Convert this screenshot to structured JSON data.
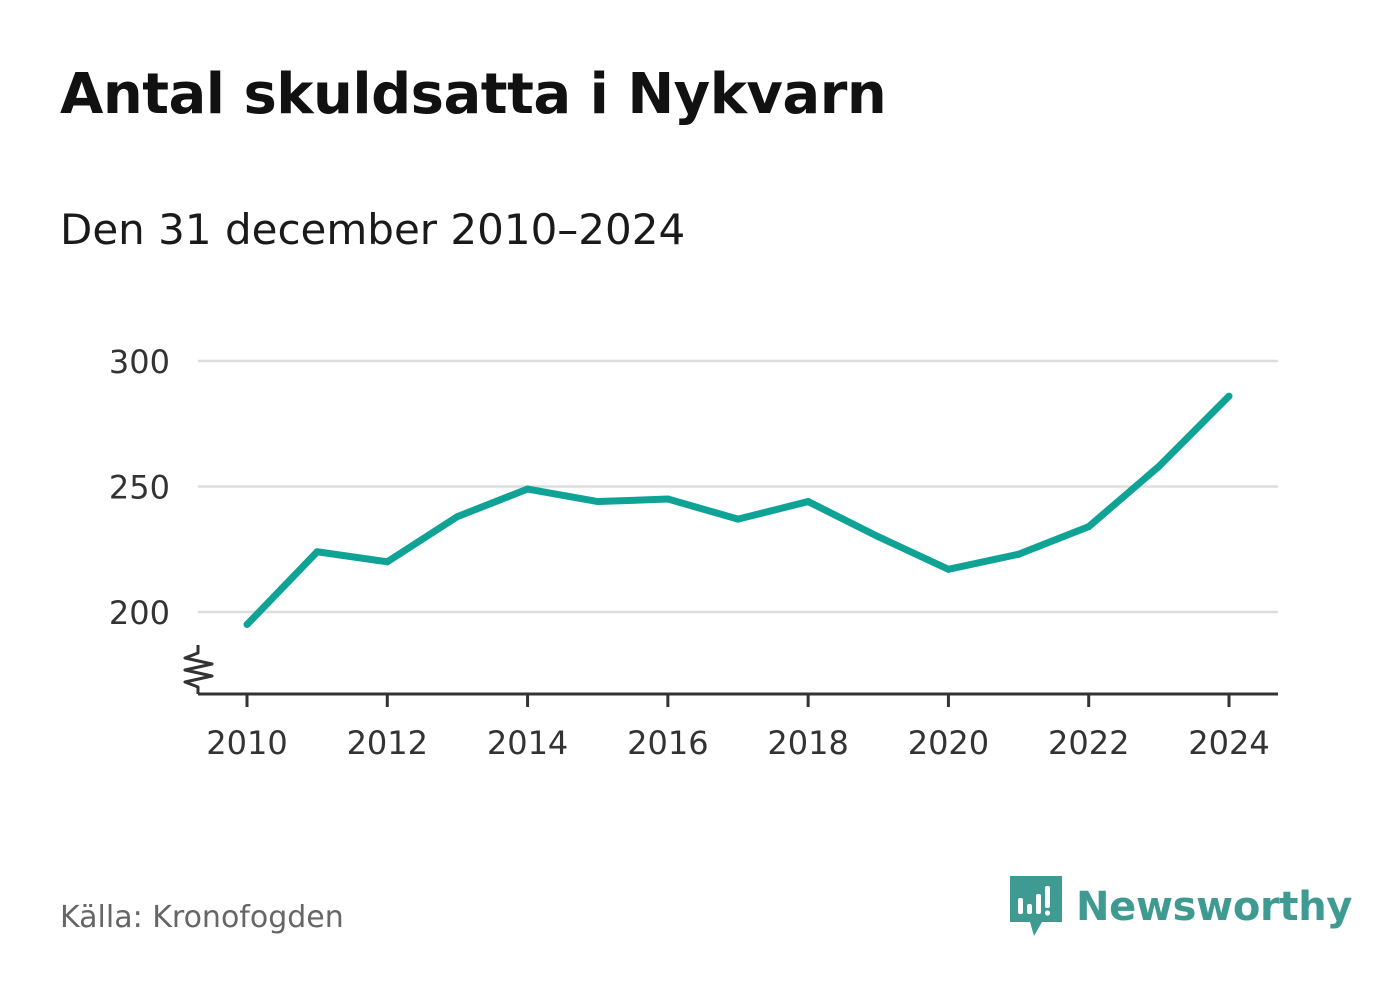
{
  "title": "Antal skuldsatta i Nykvarn",
  "subtitle": "Den 31 december 2010–2024",
  "source": "Källa: Kronofogden",
  "brand": {
    "name": "Newsworthy",
    "color": "#3f9b92",
    "icon": "newsworthy-logo-icon"
  },
  "colors": {
    "line": "#0fa396",
    "grid": "#dddddd",
    "axis": "#333333",
    "text": "#333333"
  },
  "chart_data": {
    "type": "line",
    "title": "Antal skuldsatta i Nykvarn",
    "subtitle": "Den 31 december 2010–2024",
    "x": [
      2010,
      2011,
      2012,
      2013,
      2014,
      2015,
      2016,
      2017,
      2018,
      2019,
      2020,
      2021,
      2022,
      2023,
      2024
    ],
    "series": [
      {
        "values": [
          195,
          224,
          220,
          238,
          249,
          244,
          245,
          237,
          244,
          230,
          217,
          223,
          234,
          258,
          286
        ]
      }
    ],
    "x_ticks": [
      2010,
      2012,
      2014,
      2016,
      2018,
      2020,
      2022,
      2024
    ],
    "y_ticks": [
      200,
      250,
      300
    ],
    "ylim": [
      170,
      300
    ],
    "xlim": [
      2010,
      2024
    ],
    "axis_break": true,
    "grid": "horizontal"
  }
}
